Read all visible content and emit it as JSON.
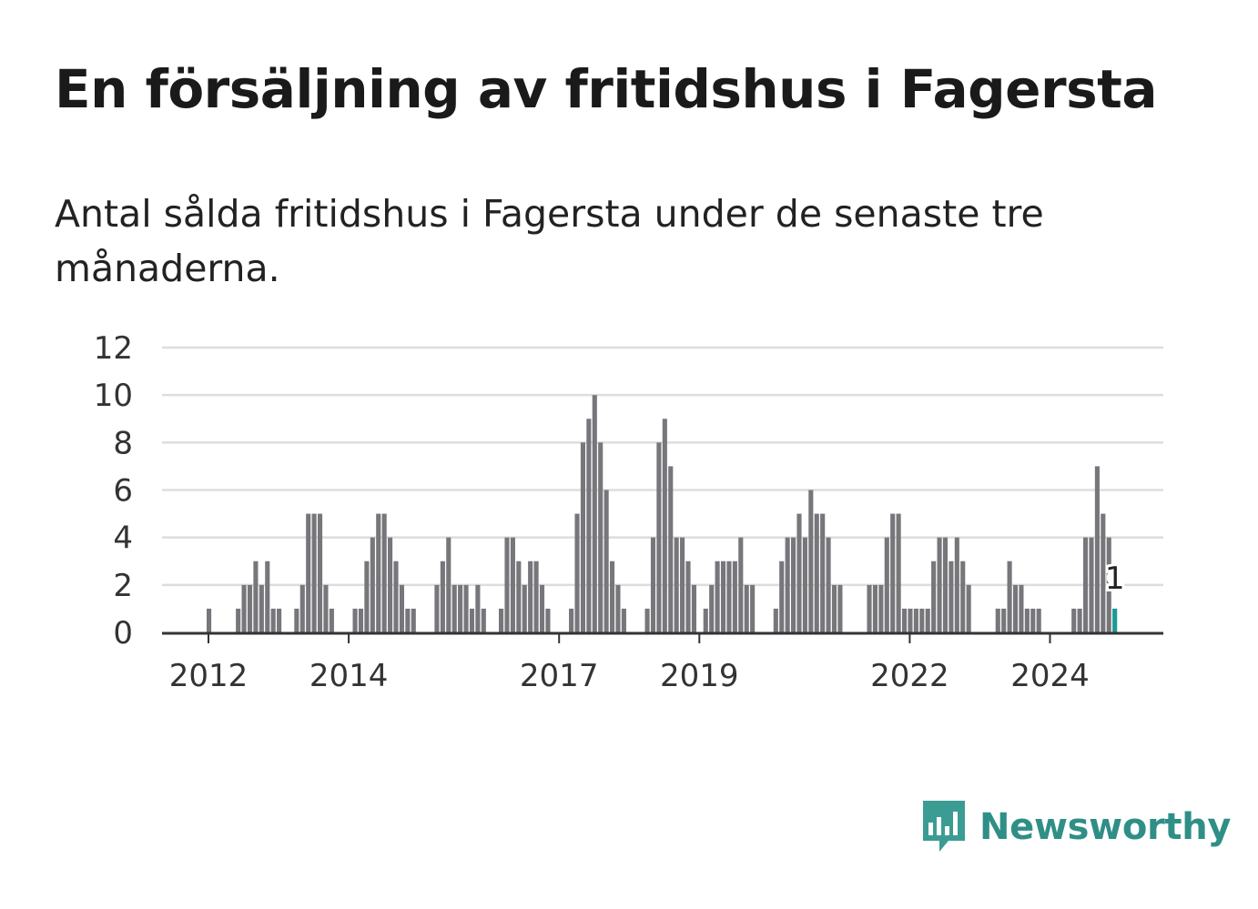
{
  "header": {
    "title": "En försäljning av fritidshus i Fagersta",
    "subtitle": "Antal sålda fritidshus i Fagersta under de senaste tre månaderna."
  },
  "brand": {
    "name": "Newsworthy",
    "color": "#3b9c93",
    "icon": "bar-chart-speech-bubble-icon"
  },
  "colors": {
    "bar": "#77767b",
    "highlight": "#1a9a94",
    "grid": "#dddddd",
    "axis": "#333333"
  },
  "chart_data": {
    "type": "bar",
    "title": "En försäljning av fritidshus i Fagersta",
    "subtitle": "Antal sålda fritidshus i Fagersta under de senaste tre månaderna.",
    "xlabel": "",
    "ylabel": "",
    "ylim": [
      0,
      12
    ],
    "yticks": [
      0,
      2,
      4,
      6,
      8,
      10,
      12
    ],
    "xticks": [
      "2012",
      "2014",
      "2017",
      "2019",
      "2022",
      "2024"
    ],
    "grid": true,
    "start_period": "2012-01",
    "period": "month",
    "values": [
      1,
      0,
      0,
      0,
      0,
      1,
      2,
      2,
      3,
      2,
      3,
      1,
      1,
      0,
      0,
      1,
      2,
      5,
      5,
      5,
      2,
      1,
      0,
      0,
      0,
      1,
      1,
      3,
      4,
      5,
      5,
      4,
      3,
      2,
      1,
      1,
      0,
      0,
      0,
      2,
      3,
      4,
      2,
      2,
      2,
      1,
      2,
      1,
      0,
      0,
      1,
      4,
      4,
      3,
      2,
      3,
      3,
      2,
      1,
      0,
      0,
      0,
      1,
      5,
      8,
      9,
      10,
      8,
      6,
      3,
      2,
      1,
      0,
      0,
      0,
      1,
      4,
      8,
      9,
      7,
      4,
      4,
      3,
      2,
      0,
      1,
      2,
      3,
      3,
      3,
      3,
      4,
      2,
      2,
      0,
      0,
      0,
      1,
      3,
      4,
      4,
      5,
      4,
      6,
      5,
      5,
      4,
      2,
      2,
      0,
      0,
      0,
      0,
      2,
      2,
      2,
      4,
      5,
      5,
      1,
      1,
      1,
      1,
      1,
      3,
      4,
      4,
      3,
      4,
      3,
      2,
      0,
      0,
      0,
      0,
      1,
      1,
      3,
      2,
      2,
      1,
      1,
      1,
      0,
      0,
      0,
      0,
      0,
      1,
      1,
      4,
      4,
      7,
      5,
      4,
      1
    ],
    "highlight": {
      "value": 1,
      "label": "1"
    }
  }
}
